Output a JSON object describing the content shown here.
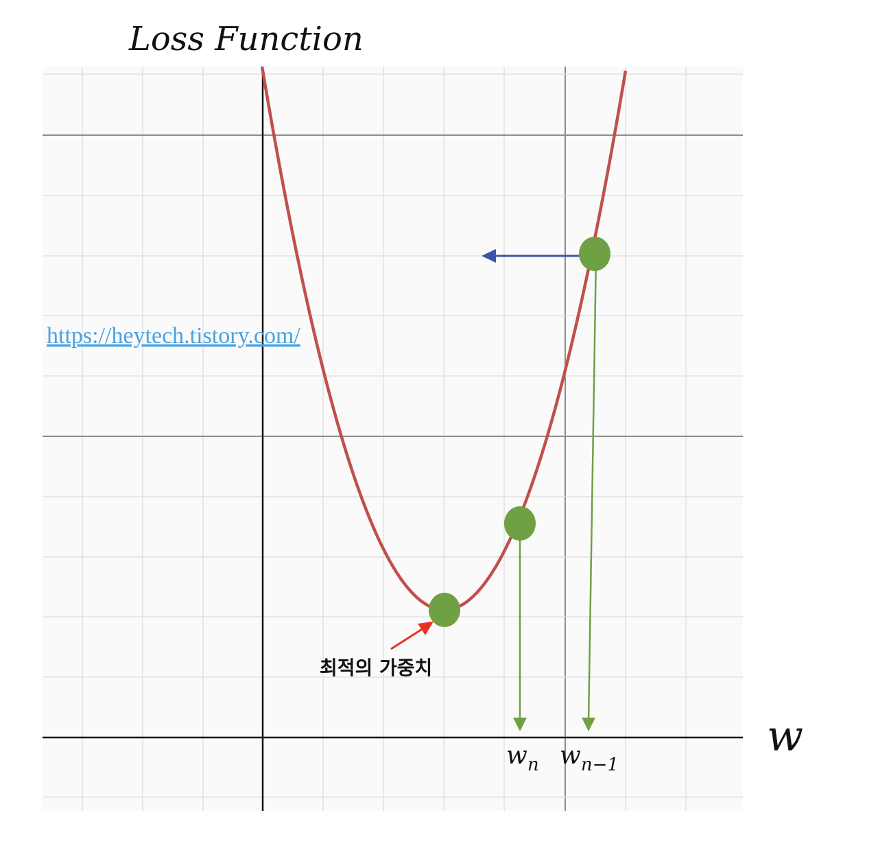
{
  "title": "Loss Function",
  "x_axis_label": "w",
  "link": {
    "text": "https://heytech.tistory.com/"
  },
  "annotations": {
    "optimal_weight": "최적의 가중치",
    "w_n_base": "w",
    "w_n_sub": "n",
    "w_n_minus_1_base": "w",
    "w_n_minus_1_sub": "n−1"
  },
  "colors": {
    "curve": "#c0504d",
    "point": "#70a044",
    "drop_arrow": "#70a044",
    "step_arrow": "#3a55a8",
    "callout_arrow": "#e53322",
    "grid_minor": "#dddddd",
    "grid_major": "#8c8c8c",
    "axis": "#111111",
    "link": "#4aa3df"
  }
}
